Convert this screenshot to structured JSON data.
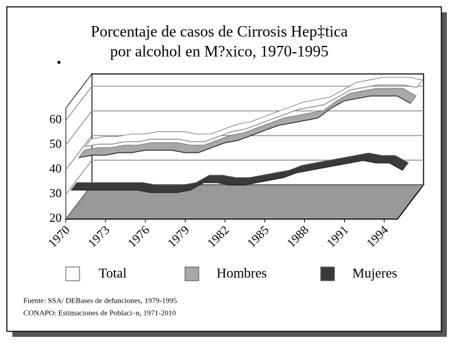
{
  "chart_data": {
    "type": "line",
    "title": [
      "Porcentaje de casos de Cirrosis Hep‡tica",
      "por alcohol en M?xico, 1970-1995"
    ],
    "x": [
      1970,
      1971,
      1972,
      1973,
      1974,
      1975,
      1976,
      1977,
      1978,
      1979,
      1980,
      1981,
      1982,
      1983,
      1984,
      1985,
      1986,
      1987,
      1988,
      1989,
      1990,
      1991,
      1992,
      1993,
      1994,
      1995
    ],
    "xlim": [
      1970,
      1995
    ],
    "xticks": [
      1970,
      1973,
      1976,
      1979,
      1982,
      1985,
      1988,
      1991,
      1994
    ],
    "ylim": [
      20,
      65
    ],
    "yticks": [
      20,
      30,
      40,
      50,
      60
    ],
    "grid": true,
    "series": [
      {
        "name": "Total",
        "color": "#ffffff",
        "values": [
          39,
          40,
          40,
          41,
          41,
          42,
          42,
          42,
          41,
          41,
          43,
          45,
          46,
          48,
          50,
          52,
          54,
          55,
          56,
          59,
          62,
          63,
          64,
          64,
          64,
          63
        ]
      },
      {
        "name": "Hombres",
        "color": "#a8a8a8",
        "values": [
          38,
          39,
          39,
          40,
          40,
          41,
          41,
          41,
          40,
          40,
          42,
          44,
          45,
          47,
          49,
          51,
          52,
          53,
          54,
          58,
          61,
          62,
          63,
          63,
          63,
          60
        ]
      },
      {
        "name": "Mujeres",
        "color": "#3a3a3a",
        "values": [
          29,
          29,
          29,
          29,
          29,
          29,
          28,
          28,
          28,
          29,
          32,
          32,
          31,
          31,
          32,
          33,
          34,
          36,
          37,
          38,
          39,
          40,
          41,
          40,
          40,
          37
        ]
      }
    ],
    "notes": [
      "Fuente: SSA/ DEBases de defunciones, 1979-1995",
      "CONAPO: Estimaciones de Poblaci–n, 1971-2010"
    ]
  }
}
